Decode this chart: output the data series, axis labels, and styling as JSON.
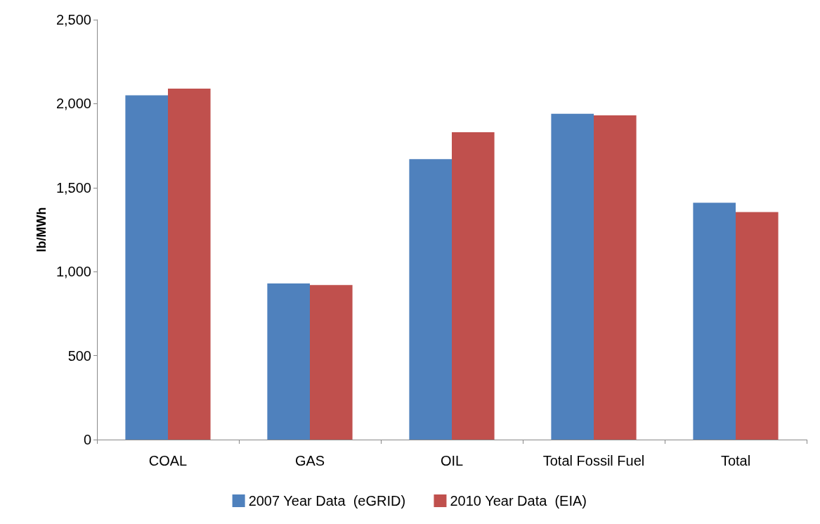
{
  "chart_data": {
    "type": "bar",
    "ylabel": "lb/MWh",
    "categories": [
      "COAL",
      "GAS",
      "OIL",
      "Total Fossil Fuel",
      "Total"
    ],
    "series": [
      {
        "name": "2007 Year Data  (eGRID)",
        "color": "#4f81bd",
        "values": [
          2050,
          930,
          1670,
          1940,
          1410
        ]
      },
      {
        "name": "2010 Year Data  (EIA)",
        "color": "#c0504d",
        "values": [
          2090,
          920,
          1830,
          1930,
          1355
        ]
      }
    ],
    "ylim": [
      0,
      2500
    ],
    "yticks": [
      {
        "value": 0,
        "label": "0"
      },
      {
        "value": 500,
        "label": "500"
      },
      {
        "value": 1000,
        "label": "1,000"
      },
      {
        "value": 1500,
        "label": "1,500"
      },
      {
        "value": 2000,
        "label": "2,000"
      },
      {
        "value": 2500,
        "label": "2,500"
      }
    ],
    "grid": false,
    "legend": "bottom"
  }
}
